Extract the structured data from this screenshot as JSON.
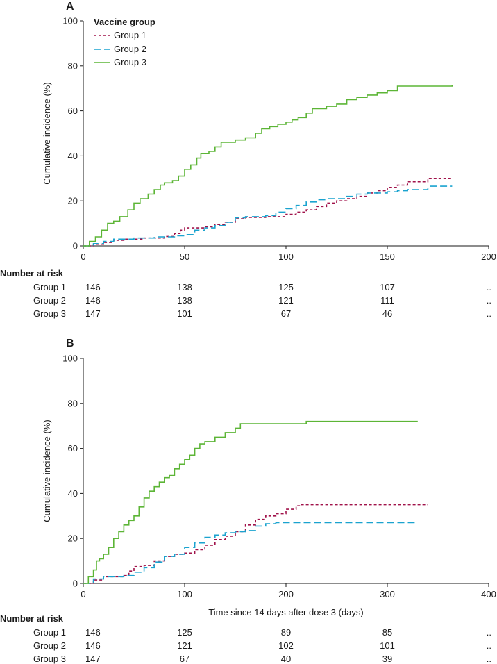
{
  "chart_data": [
    {
      "type": "line",
      "panel": "A",
      "xlabel": "",
      "ylabel": "Cumulative incidence (%)",
      "xlim": [
        0,
        200
      ],
      "ylim": [
        0,
        100
      ],
      "x_ticks": [
        0,
        50,
        100,
        150,
        200
      ],
      "y_ticks": [
        0,
        20,
        40,
        60,
        80,
        100
      ],
      "legend": {
        "title": "Vaccine group",
        "position": "top-left",
        "entries": [
          "Group 1",
          "Group 2",
          "Group 3"
        ]
      },
      "series": [
        {
          "name": "Group 1",
          "color": "#a0124a",
          "dash": "short",
          "points": [
            [
              0,
              0
            ],
            [
              5,
              0.7
            ],
            [
              10,
              1.5
            ],
            [
              15,
              2.5
            ],
            [
              20,
              3.0
            ],
            [
              30,
              3.5
            ],
            [
              40,
              4.2
            ],
            [
              45,
              5.5
            ],
            [
              48,
              7.0
            ],
            [
              50,
              8.0
            ],
            [
              60,
              8.5
            ],
            [
              65,
              9.5
            ],
            [
              70,
              10.5
            ],
            [
              75,
              12.0
            ],
            [
              80,
              12.7
            ],
            [
              90,
              13.0
            ],
            [
              100,
              14.0
            ],
            [
              105,
              15.0
            ],
            [
              110,
              16.0
            ],
            [
              115,
              17.5
            ],
            [
              120,
              19.0
            ],
            [
              125,
              20.0
            ],
            [
              130,
              21.0
            ],
            [
              135,
              22.0
            ],
            [
              140,
              23.5
            ],
            [
              145,
              24.5
            ],
            [
              150,
              26.0
            ],
            [
              155,
              27.0
            ],
            [
              160,
              28.5
            ],
            [
              170,
              30.0
            ],
            [
              182,
              30.0
            ]
          ]
        },
        {
          "name": "Group 2",
          "color": "#1aa3cf",
          "dash": "long",
          "points": [
            [
              0,
              0
            ],
            [
              5,
              1.0
            ],
            [
              10,
              2.0
            ],
            [
              15,
              3.0
            ],
            [
              25,
              3.5
            ],
            [
              35,
              4.0
            ],
            [
              45,
              4.5
            ],
            [
              50,
              5.0
            ],
            [
              55,
              7.0
            ],
            [
              60,
              8.0
            ],
            [
              65,
              9.0
            ],
            [
              70,
              10.5
            ],
            [
              75,
              12.5
            ],
            [
              80,
              13.0
            ],
            [
              90,
              13.5
            ],
            [
              95,
              15.0
            ],
            [
              100,
              16.5
            ],
            [
              105,
              18.0
            ],
            [
              110,
              19.5
            ],
            [
              115,
              20.5
            ],
            [
              120,
              21.0
            ],
            [
              130,
              22.0
            ],
            [
              135,
              23.0
            ],
            [
              140,
              23.5
            ],
            [
              145,
              23.5
            ],
            [
              150,
              24.0
            ],
            [
              155,
              24.5
            ],
            [
              160,
              25.0
            ],
            [
              170,
              26.5
            ],
            [
              182,
              26.5
            ]
          ]
        },
        {
          "name": "Group 3",
          "color": "#5cb536",
          "dash": "solid",
          "points": [
            [
              0,
              0
            ],
            [
              3,
              2
            ],
            [
              6,
              4
            ],
            [
              9,
              7
            ],
            [
              12,
              10
            ],
            [
              15,
              11
            ],
            [
              18,
              13
            ],
            [
              22,
              16
            ],
            [
              25,
              19
            ],
            [
              28,
              21
            ],
            [
              32,
              23
            ],
            [
              35,
              25
            ],
            [
              38,
              27
            ],
            [
              40,
              28
            ],
            [
              44,
              29
            ],
            [
              47,
              31
            ],
            [
              50,
              34
            ],
            [
              53,
              36
            ],
            [
              56,
              39
            ],
            [
              58,
              41
            ],
            [
              62,
              42
            ],
            [
              65,
              44
            ],
            [
              68,
              46
            ],
            [
              75,
              47
            ],
            [
              80,
              48
            ],
            [
              85,
              50
            ],
            [
              88,
              52
            ],
            [
              92,
              53
            ],
            [
              96,
              54
            ],
            [
              100,
              55
            ],
            [
              103,
              56
            ],
            [
              106,
              57
            ],
            [
              110,
              59
            ],
            [
              113,
              61
            ],
            [
              120,
              62
            ],
            [
              125,
              63
            ],
            [
              130,
              65
            ],
            [
              135,
              66
            ],
            [
              140,
              67
            ],
            [
              145,
              68
            ],
            [
              150,
              69
            ],
            [
              155,
              71
            ],
            [
              160,
              71
            ],
            [
              182,
              71.5
            ]
          ]
        }
      ],
      "risk_table": {
        "title": "Number at risk",
        "times": [
          0,
          50,
          100,
          150,
          200
        ],
        "rows": [
          {
            "label": "Group 1",
            "values": [
              "146",
              "138",
              "125",
              "107",
              ".."
            ]
          },
          {
            "label": "Group 2",
            "values": [
              "146",
              "138",
              "121",
              "111",
              ".."
            ]
          },
          {
            "label": "Group 3",
            "values": [
              "147",
              "101",
              "67",
              "46",
              ".."
            ]
          }
        ]
      }
    },
    {
      "type": "line",
      "panel": "B",
      "xlabel": "Time since 14 days after dose 3 (days)",
      "ylabel": "Cumulative incidence (%)",
      "xlim": [
        0,
        400
      ],
      "ylim": [
        0,
        100
      ],
      "x_ticks": [
        0,
        100,
        200,
        300,
        400
      ],
      "y_ticks": [
        0,
        20,
        40,
        60,
        80,
        100
      ],
      "series": [
        {
          "name": "Group 1",
          "color": "#a0124a",
          "dash": "short",
          "points": [
            [
              0,
              0
            ],
            [
              10,
              1.5
            ],
            [
              20,
              3.0
            ],
            [
              40,
              3.5
            ],
            [
              45,
              5.5
            ],
            [
              50,
              7.5
            ],
            [
              60,
              8.0
            ],
            [
              70,
              10.0
            ],
            [
              80,
              12.0
            ],
            [
              90,
              13.0
            ],
            [
              100,
              13.5
            ],
            [
              110,
              15.0
            ],
            [
              120,
              17.0
            ],
            [
              130,
              19.5
            ],
            [
              140,
              21.0
            ],
            [
              150,
              23.0
            ],
            [
              160,
              26.0
            ],
            [
              170,
              28.5
            ],
            [
              180,
              30.0
            ],
            [
              190,
              31.0
            ],
            [
              200,
              33.0
            ],
            [
              210,
              34.5
            ],
            [
              215,
              35.0
            ],
            [
              340,
              35.0
            ]
          ]
        },
        {
          "name": "Group 2",
          "color": "#1aa3cf",
          "dash": "long",
          "points": [
            [
              0,
              0
            ],
            [
              10,
              2.0
            ],
            [
              20,
              3.0
            ],
            [
              40,
              3.5
            ],
            [
              50,
              5.0
            ],
            [
              60,
              7.0
            ],
            [
              70,
              9.5
            ],
            [
              80,
              12.0
            ],
            [
              90,
              13.0
            ],
            [
              100,
              16.0
            ],
            [
              110,
              18.0
            ],
            [
              120,
              20.5
            ],
            [
              130,
              21.5
            ],
            [
              140,
              22.5
            ],
            [
              150,
              23.0
            ],
            [
              160,
              23.5
            ],
            [
              170,
              25.5
            ],
            [
              180,
              26.5
            ],
            [
              190,
              27.0
            ],
            [
              327,
              27.0
            ]
          ]
        },
        {
          "name": "Group 3",
          "color": "#5cb536",
          "dash": "solid",
          "points": [
            [
              0,
              0
            ],
            [
              5,
              3
            ],
            [
              10,
              6
            ],
            [
              13,
              10
            ],
            [
              16,
              11
            ],
            [
              20,
              13
            ],
            [
              25,
              16
            ],
            [
              30,
              20
            ],
            [
              35,
              23
            ],
            [
              40,
              26
            ],
            [
              45,
              28
            ],
            [
              50,
              30
            ],
            [
              55,
              34
            ],
            [
              60,
              38
            ],
            [
              65,
              41
            ],
            [
              70,
              43
            ],
            [
              75,
              45
            ],
            [
              80,
              47
            ],
            [
              85,
              48
            ],
            [
              90,
              51
            ],
            [
              95,
              53
            ],
            [
              100,
              55
            ],
            [
              105,
              57
            ],
            [
              110,
              60
            ],
            [
              115,
              62
            ],
            [
              120,
              63
            ],
            [
              130,
              65
            ],
            [
              140,
              67
            ],
            [
              150,
              69
            ],
            [
              155,
              71
            ],
            [
              170,
              71
            ],
            [
              220,
              72
            ],
            [
              330,
              72
            ]
          ]
        }
      ],
      "risk_table": {
        "title": "Number at risk",
        "times": [
          0,
          100,
          200,
          300,
          400
        ],
        "rows": [
          {
            "label": "Group 1",
            "values": [
              "146",
              "125",
              "89",
              "85",
              ".."
            ]
          },
          {
            "label": "Group 2",
            "values": [
              "146",
              "121",
              "102",
              "101",
              ".."
            ]
          },
          {
            "label": "Group 3",
            "values": [
              "147",
              "67",
              "40",
              "39",
              ".."
            ]
          }
        ]
      }
    }
  ]
}
